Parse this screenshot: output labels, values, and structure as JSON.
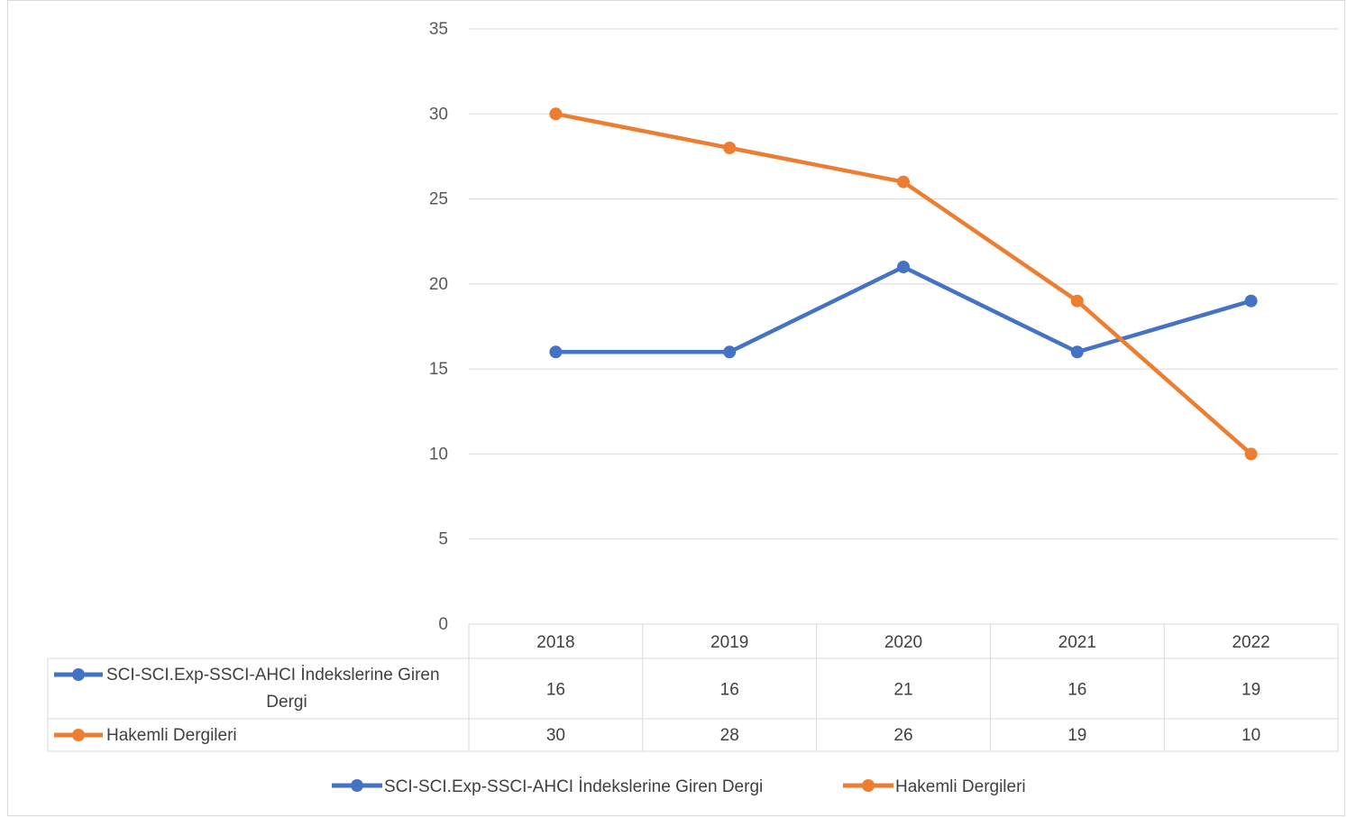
{
  "chart_data": {
    "type": "line",
    "categories": [
      "2018",
      "2019",
      "2020",
      "2021",
      "2022"
    ],
    "series": [
      {
        "name": "SCI-SCI.Exp-SSCI-AHCI İndekslerine Giren Dergi",
        "table_label_lines": [
          "SCI-SCI.Exp-SSCI-AHCI İndekslerine Giren",
          "Dergi"
        ],
        "values": [
          16,
          16,
          21,
          16,
          19
        ],
        "color": "#4472c4"
      },
      {
        "name": "Hakemli Dergileri",
        "table_label_lines": [
          "Hakemli Dergileri"
        ],
        "values": [
          30,
          28,
          26,
          19,
          10
        ],
        "color": "#ed7d31"
      }
    ],
    "ylim": [
      0,
      35
    ],
    "yticks": [
      0,
      5,
      10,
      15,
      20,
      25,
      30,
      35
    ],
    "grid": true,
    "data_table": true,
    "legend_position": "bottom",
    "title": "",
    "xlabel": "",
    "ylabel": ""
  }
}
